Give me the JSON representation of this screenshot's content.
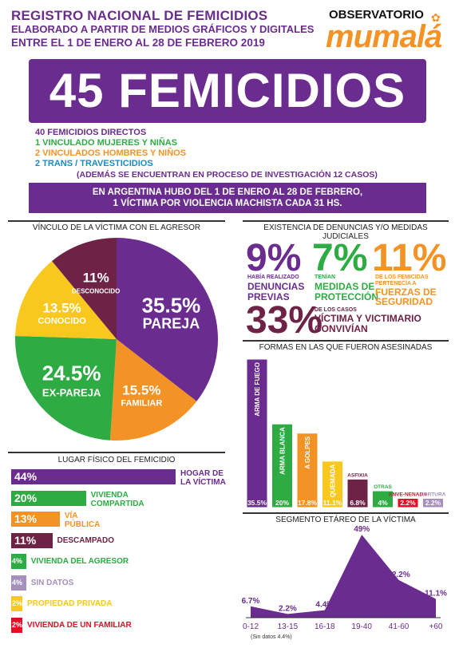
{
  "header": {
    "title": "REGISTRO NACIONAL DE FEMICIDIOS",
    "subtitle1": "ELABORADO A PARTIR DE MEDIOS GRÁFICOS Y DIGITALES",
    "subtitle2": "ENTRE EL 1 DE ENERO AL 28 DE FEBRERO 2019",
    "logo_top": "OBSERVATORIO",
    "logo_word": "mumalá"
  },
  "banner": {
    "text": "45 FEMICIDIOS"
  },
  "breakdown": {
    "line1": "40 FEMICIDIOS DIRECTOS",
    "line2": "1 VINCULADO MUJERES Y NIÑAS",
    "line3": "2 VINCULADOS HOMBRES Y NIÑOS",
    "line4": "2 TRANS / TRAVESTICIDIOS",
    "line5": "(ADEMÁS SE ENCUENTRAN EN PROCESO DE INVESTIGACIÓN 12 CASOS)"
  },
  "stat_banner": {
    "line1": "EN ARGENTINA HUBO DEL 1 DE ENERO AL 28 DE FEBRERO,",
    "line2": "1 VÍCTIMA POR VIOLENCIA MACHISTA CADA 31 HS."
  },
  "colors": {
    "purple": "#6a2c8e",
    "green": "#2eab43",
    "orange": "#f39325",
    "yellow": "#f9c81e",
    "wine": "#6e2246",
    "lilac": "#a48fbd",
    "red": "#e30e25",
    "blue": "#1a8ac1"
  },
  "denuncias": {
    "title1": "EXISTENCIA DE DENUNCIAS Y/O MEDIDAS",
    "title2": "JUDICIALES",
    "a_pct": "9%",
    "a_small": "HABÍA REALIZADO",
    "a_big1": "DENUNCIAS",
    "a_big2": "PREVIAS",
    "b_pct": "7%",
    "b_small": "TENÍAN",
    "b_big1": "MEDIDAS DE",
    "b_big2": "PROTECCIÓN",
    "c_pct": "11%",
    "c_small1": "DE LOS FEMICIDAS",
    "c_small2": "PERTENECÍA A",
    "c_big1": "FUERZAS DE",
    "c_big2": "SEGURIDAD",
    "d_pct": "33%",
    "d_small": "DE LOS CASOS",
    "d_big1": "VÍCTIMA Y VICTIMARIO",
    "d_big2": "CONVIVÍAN"
  },
  "chart_data": [
    {
      "type": "pie",
      "title": "VÍNCULO DE LA VÍCTIMA CON EL AGRESOR",
      "slices": [
        {
          "label": "PAREJA",
          "value": 35.5,
          "display": "35.5%",
          "color": "#6a2c8e"
        },
        {
          "label": "FAMILIAR",
          "value": 15.5,
          "display": "15.5%",
          "color": "#f39325"
        },
        {
          "label": "EX-PAREJA",
          "value": 24.5,
          "display": "24.5%",
          "color": "#2eab43"
        },
        {
          "label": "CONOCIDO",
          "value": 13.5,
          "display": "13.5%",
          "color": "#f9c81e"
        },
        {
          "label": "DESCONOCIDO",
          "value": 11,
          "display": "11%",
          "color": "#6e2246"
        }
      ]
    },
    {
      "type": "bar",
      "title": "LUGAR FÍSICO DEL FEMICIDIO",
      "orientation": "horizontal",
      "bars": [
        {
          "label1": "HOGAR DE",
          "label2": "LA VÍCTIMA",
          "value": 44,
          "display": "44%",
          "color": "#6a2c8e",
          "label_color": "#6a2c8e"
        },
        {
          "label1": "VIVIENDA",
          "label2": "COMPARTIDA",
          "value": 20,
          "display": "20%",
          "color": "#2eab43",
          "label_color": "#2eab43"
        },
        {
          "label1": "VÍA",
          "label2": "PÚBLICA",
          "value": 13,
          "display": "13%",
          "color": "#f39325",
          "label_color": "#f39325"
        },
        {
          "label1": "DESCAMPADO",
          "label2": "",
          "value": 11,
          "display": "11%",
          "color": "#6e2246",
          "label_color": "#6e2246"
        },
        {
          "label1": "VIVIENDA DEL AGRESOR",
          "label2": "",
          "value": 4,
          "display": "4%",
          "color": "#2eab43",
          "label_color": "#2eab43"
        },
        {
          "label1": "SIN DATOS",
          "label2": "",
          "value": 4,
          "display": "4%",
          "color": "#a48fbd",
          "label_color": "#a48fbd"
        },
        {
          "label1": "PROPIEDAD PRIVADA",
          "label2": "",
          "value": 2,
          "display": "2%",
          "color": "#f9c81e",
          "label_color": "#f9c81e"
        },
        {
          "label1": "VIVIENDA DE UN FAMILIAR",
          "label2": "",
          "value": 2,
          "display": "2%",
          "color": "#e30e25",
          "label_color": "#e30e25"
        }
      ]
    },
    {
      "type": "bar",
      "title": "FORMAS EN LAS QUE FUERON ASESINADAS",
      "orientation": "vertical",
      "bars": [
        {
          "label": "ARMA DE FUEGO",
          "value": 35.5,
          "display": "35.5%",
          "color": "#6a2c8e"
        },
        {
          "label": "ARMA BLANCA",
          "value": 20,
          "display": "20%",
          "color": "#2eab43"
        },
        {
          "label": "A GOLPES",
          "value": 17.8,
          "display": "17.8%",
          "color": "#f39325"
        },
        {
          "label": "QUEMADA",
          "value": 11.1,
          "display": "11.1%",
          "color": "#f9c81e"
        },
        {
          "label": "ASFIXIA",
          "value": 6.8,
          "display": "6.8%",
          "color": "#6e2246"
        },
        {
          "label": "OTRAS",
          "value": 4,
          "display": "4%",
          "color": "#2eab43"
        },
        {
          "label": "ENVE-NENADA",
          "value": 2.2,
          "display": "2.2%",
          "color": "#e30e25"
        },
        {
          "label": "TORTURA",
          "value": 2.2,
          "display": "2.2%",
          "color": "#a48fbd"
        }
      ]
    },
    {
      "type": "area",
      "title": "SEGMENTO ETÁREO DE LA VÍCTIMA",
      "categories": [
        "0-12",
        "13-15",
        "16-18",
        "19-40",
        "41-60",
        "+60"
      ],
      "values": [
        6.7,
        2.2,
        4.4,
        49,
        22.2,
        11.1
      ],
      "displays": [
        "6.7%",
        "2.2%",
        "4.4%",
        "49%",
        "22.2%",
        "11.1%"
      ],
      "note": "(Sin datos 4.4%)",
      "color": "#6a2c8e"
    }
  ]
}
